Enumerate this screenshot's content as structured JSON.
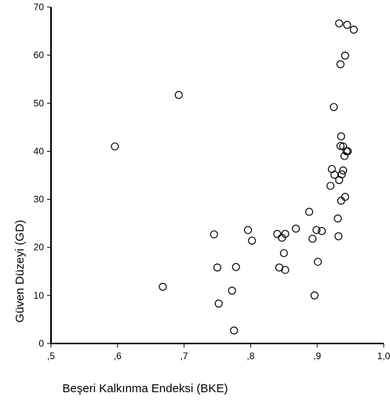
{
  "chart_data": {
    "type": "scatter",
    "title": "",
    "xlabel": "Beşeri Kalkınma Endeksi (BKE)",
    "ylabel": "Güven Düzeyi (GD)",
    "xlim": [
      0.5,
      1.0
    ],
    "ylim": [
      0,
      70
    ],
    "x_ticks": [
      0.5,
      0.6,
      0.7,
      0.8,
      0.9,
      1.0
    ],
    "x_tick_labels": [
      ",5",
      ",6",
      ",7",
      ",8",
      ",9",
      "1,0"
    ],
    "y_ticks": [
      0,
      10,
      20,
      30,
      40,
      50,
      60,
      70
    ],
    "y_tick_labels": [
      "0",
      "10",
      "20",
      "30",
      "40",
      "50",
      "60",
      "70"
    ],
    "grid": false,
    "legend": "none",
    "marker": "hollow-circle",
    "series": [
      {
        "x": [
          0.596,
          0.668,
          0.692,
          0.745,
          0.75,
          0.752,
          0.772,
          0.775,
          0.778,
          0.796,
          0.802,
          0.84,
          0.843,
          0.847,
          0.85,
          0.852,
          0.852,
          0.868,
          0.888,
          0.893,
          0.896,
          0.899,
          0.901,
          0.907,
          0.92,
          0.922,
          0.925,
          0.926,
          0.931,
          0.932,
          0.933,
          0.933,
          0.935,
          0.935,
          0.936,
          0.936,
          0.937,
          0.939,
          0.939,
          0.941,
          0.942,
          0.942,
          0.944,
          0.945,
          0.946,
          0.955
        ],
        "y": [
          41.0,
          11.8,
          51.7,
          22.7,
          15.8,
          8.3,
          11.0,
          2.7,
          15.9,
          23.6,
          21.4,
          22.8,
          15.8,
          22.0,
          18.8,
          15.3,
          22.8,
          23.9,
          27.4,
          21.8,
          10.0,
          23.6,
          17.0,
          23.4,
          32.8,
          36.3,
          49.2,
          35.1,
          26.0,
          22.3,
          66.6,
          34.0,
          58.1,
          41.1,
          43.1,
          29.7,
          35.2,
          36.0,
          41.0,
          39.0,
          59.9,
          30.5,
          40.0,
          66.3,
          40.0,
          65.3
        ]
      }
    ]
  }
}
